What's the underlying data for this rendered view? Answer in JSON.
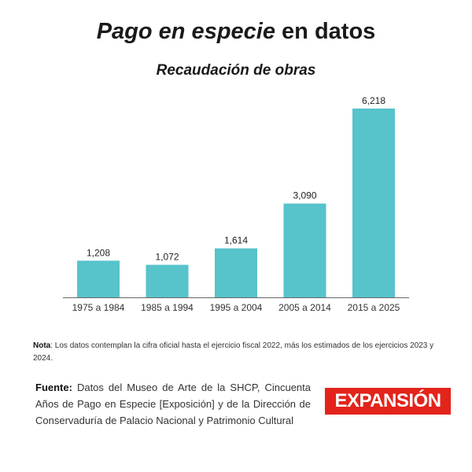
{
  "header": {
    "title_italic": "Pago en especie",
    "title_rest": " en datos",
    "subtitle": "Recaudación de obras"
  },
  "chart_data": {
    "type": "bar",
    "categories": [
      "1975 a 1984",
      "1985 a 1994",
      "1995 a 2004",
      "2005 a 2014",
      "2015 a 2025"
    ],
    "values": [
      1208,
      1072,
      1614,
      3090,
      6218
    ],
    "value_labels": [
      "1,208",
      "1,072",
      "1,614",
      "3,090",
      "6,218"
    ],
    "title": "Recaudación de obras",
    "xlabel": "",
    "ylabel": "",
    "ylim": [
      0,
      6500
    ],
    "grid": false,
    "legend": "none",
    "bar_color": "#57c3cb",
    "axis_color": "#666666"
  },
  "footer": {
    "note_label": "Nota",
    "note_text": ": Los datos contemplan la cifra oficial hasta el ejercicio fiscal 2022, más los estimados de los ejercicios 2023 y 2024.",
    "source_label": "Fuente:",
    "source_text": " Datos del Museo de Arte de la SHCP, Cincuenta Años de Pago en Especie [Exposición] y de la Dirección de Conservaduría de Palacio Nacional y Patrimonio Cultural",
    "logo_text": "EXPANSIÓN",
    "logo_color": "#e3241b"
  }
}
